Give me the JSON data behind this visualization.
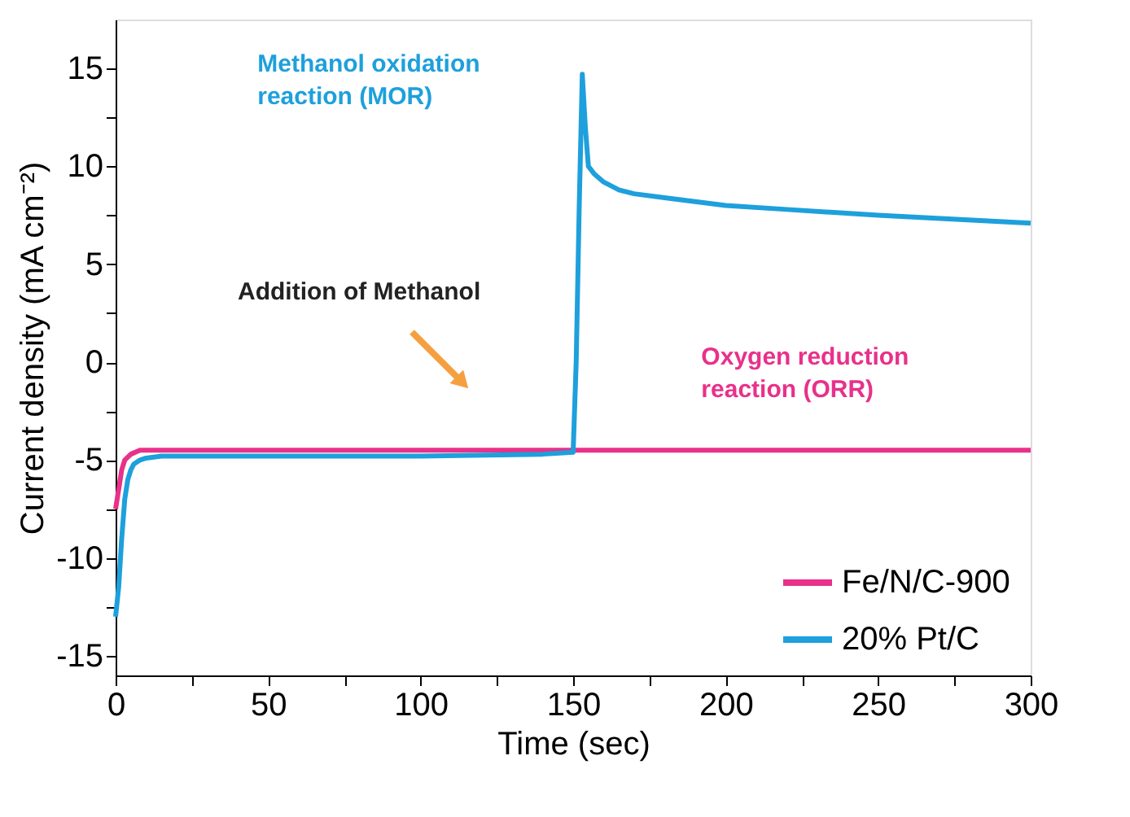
{
  "chart_data": {
    "type": "line",
    "xlabel": "Time (sec)",
    "ylabel": "Current density (mA cm⁻²)",
    "xlim": [
      0,
      300
    ],
    "ylim": [
      -16,
      17.5
    ],
    "xticks": [
      0,
      {
        "value": 25,
        "label": null
      },
      50,
      {
        "value": 75,
        "label": null
      },
      100,
      {
        "value": 125,
        "label": null
      },
      150,
      {
        "value": 175,
        "label": null
      },
      200,
      {
        "value": 225,
        "label": null
      },
      250,
      {
        "value": 275,
        "label": null
      },
      300
    ],
    "yticks": [
      -15,
      {
        "value": -12.5,
        "label": null
      },
      -10,
      {
        "value": -7.5,
        "label": null
      },
      -5,
      {
        "value": -2.5,
        "label": null
      },
      0,
      {
        "value": 2.5,
        "label": null
      },
      5,
      {
        "value": 7.5,
        "label": null
      },
      10,
      {
        "value": 12.5,
        "label": null
      },
      15
    ],
    "grid": false,
    "legend": "bottom right",
    "line_style": "solid",
    "marker": "none",
    "series": [
      {
        "name": "Fe/N/C-900",
        "color": "#e8318a",
        "x": [
          0,
          1,
          2,
          3,
          5,
          8,
          10,
          20,
          100,
          150,
          200,
          300
        ],
        "values": [
          -7.5,
          -6.5,
          -5.5,
          -5,
          -4.7,
          -4.5,
          -4.5,
          -4.5,
          -4.5,
          -4.5,
          -4.5,
          -4.5
        ]
      },
      {
        "name": "20% Pt/C",
        "color": "#1ea0dc",
        "x": [
          0,
          1,
          2,
          3,
          4,
          5,
          6,
          8,
          10,
          15,
          20,
          50,
          100,
          140,
          150,
          151,
          152,
          153,
          154,
          155,
          157,
          160,
          165,
          170,
          180,
          190,
          200,
          220,
          250,
          300
        ],
        "values": [
          -13,
          -11.5,
          -9,
          -7,
          -6,
          -5.5,
          -5.2,
          -5,
          -4.9,
          -4.8,
          -4.8,
          -4.8,
          -4.8,
          -4.7,
          -4.6,
          0,
          8,
          14.7,
          12,
          10,
          9.6,
          9.2,
          8.8,
          8.6,
          8.4,
          8.2,
          8,
          7.8,
          7.5,
          7.1
        ]
      }
    ],
    "annotations": [
      "Methanol oxidation\nreaction (MOR)",
      "Addition of Methanol",
      "Oxygen reduction\nreaction (ORR)"
    ]
  }
}
